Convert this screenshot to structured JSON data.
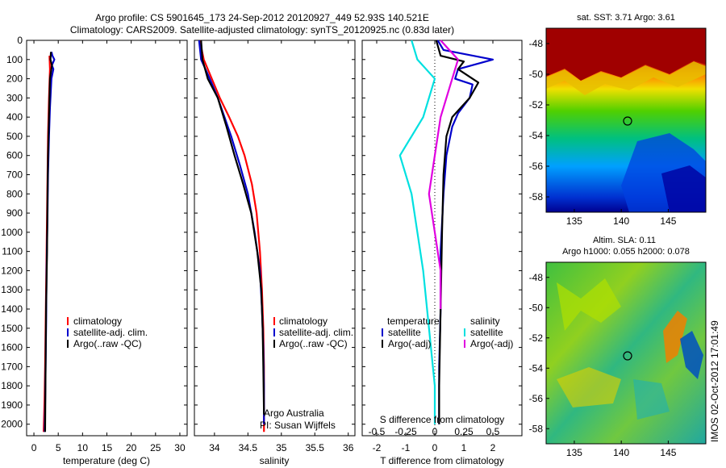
{
  "header": {
    "line1": "Argo profile: CS 5901645_173 24-Sep-2012 20120927_449 52.93S 140.521E",
    "line2": "Climatology: CARS2009. Satellite-adjusted climatology: synTS_20120925.nc (0.83d later)"
  },
  "colors": {
    "climatology": "#ff0000",
    "satellite": "#0000cc",
    "argo": "#000000",
    "sal_satellite": "#00e0e0",
    "sal_argo": "#e000e0"
  },
  "chart_data": [
    {
      "type": "line",
      "xlabel": "temperature (deg C)",
      "ylabel": "",
      "xlim": [
        -1.5,
        31.5
      ],
      "ylim": [
        2060,
        0
      ],
      "xticks": [
        0,
        5,
        10,
        15,
        20,
        25,
        30
      ],
      "yticks": [
        0,
        100,
        200,
        300,
        400,
        500,
        600,
        700,
        800,
        900,
        1000,
        1100,
        1200,
        1300,
        1400,
        1500,
        1600,
        1700,
        1800,
        1900,
        2000
      ],
      "legend": [
        "climatology",
        "satellite-adj. clim.",
        "Argo(..raw -QC)"
      ],
      "series": [
        {
          "name": "climatology",
          "color": "#ff0000",
          "x": [
            3.2,
            3.3,
            3.1,
            2.9,
            2.8,
            2.7,
            2.6,
            2.5,
            2.4,
            2.3,
            2.2,
            2.1,
            2.0
          ],
          "y": [
            80,
            150,
            300,
            500,
            700,
            900,
            1100,
            1300,
            1500,
            1700,
            1850,
            1950,
            2040
          ]
        },
        {
          "name": "satellite-adj. clim.",
          "color": "#0000cc",
          "x": [
            3.6,
            3.8,
            4.2,
            3.7,
            4.0,
            3.6,
            3.3,
            3.1,
            2.9,
            2.8,
            2.6,
            2.5,
            2.4,
            2.3,
            2.2
          ],
          "y": [
            60,
            80,
            100,
            130,
            150,
            200,
            350,
            500,
            700,
            900,
            1200,
            1500,
            1700,
            1900,
            2040
          ]
        },
        {
          "name": "Argo(..raw -QC)",
          "color": "#000000",
          "x": [
            3.5,
            3.4,
            3.7,
            3.3,
            3.1,
            2.9,
            2.8,
            2.7,
            2.5,
            2.4,
            2.3
          ],
          "y": [
            60,
            100,
            130,
            200,
            400,
            600,
            800,
            1100,
            1400,
            1700,
            2040
          ]
        }
      ]
    },
    {
      "type": "line",
      "xlabel": "salinity",
      "xlim": [
        33.7,
        36.1
      ],
      "ylim": [
        2060,
        0
      ],
      "xticks": [
        34,
        34.5,
        35,
        35.5,
        36
      ],
      "xticklabels": [
        "34",
        "34.5",
        "35",
        "35.5",
        "36"
      ],
      "legend": [
        "climatology",
        "satellite-adj. clim.",
        "Argo(..raw -QC)"
      ],
      "annotation": [
        "Argo Australia",
        "PI: Susan Wijffels"
      ],
      "series": [
        {
          "name": "climatology",
          "color": "#ff0000",
          "x": [
            33.78,
            33.84,
            33.96,
            34.08,
            34.22,
            34.35,
            34.45,
            34.56,
            34.63,
            34.68,
            34.71,
            34.73,
            34.74,
            34.74,
            34.74
          ],
          "y": [
            0,
            100,
            200,
            300,
            400,
            500,
            600,
            750,
            900,
            1100,
            1300,
            1500,
            1700,
            1900,
            2040
          ]
        },
        {
          "name": "satellite-adj. clim.",
          "color": "#0000cc",
          "x": [
            33.77,
            33.8,
            33.93,
            34.05,
            34.15,
            34.25,
            34.38,
            34.5,
            34.6,
            34.68,
            34.71,
            34.73,
            34.74,
            34.74
          ],
          "y": [
            0,
            100,
            200,
            300,
            400,
            500,
            650,
            800,
            1000,
            1200,
            1400,
            1600,
            1800,
            2000
          ]
        },
        {
          "name": "Argo(..raw -QC)",
          "color": "#000000",
          "x": [
            33.8,
            33.82,
            33.9,
            34.05,
            34.18,
            34.3,
            34.43,
            34.55,
            34.64,
            34.7,
            34.72,
            34.73,
            34.74
          ],
          "y": [
            0,
            100,
            200,
            300,
            450,
            600,
            750,
            900,
            1100,
            1300,
            1500,
            1700,
            1950
          ]
        }
      ]
    },
    {
      "type": "line",
      "xlabel": "T difference from climatology",
      "xlabel_top": "S difference from climatology",
      "xlim": [
        -2.5,
        3.0
      ],
      "ylim": [
        2060,
        0
      ],
      "xticks": [
        -2,
        -1,
        0,
        1,
        2
      ],
      "s_ticks": [
        -0.5,
        -0.25,
        0,
        0.25,
        0.5
      ],
      "s_ticklabels": [
        "-0.5",
        "-0.25",
        "0",
        "0.25",
        "0.5"
      ],
      "legend_headers": [
        "temperature",
        "salinity"
      ],
      "legend_left": [
        "satellite",
        "Argo(-adj)"
      ],
      "legend_right": [
        "satellite",
        "Argo(-adj)"
      ],
      "series": [
        {
          "name": "T satellite",
          "color": "#0000cc",
          "x": [
            0.1,
            0.3,
            2.0,
            0.8,
            0.7,
            1.3,
            1.2,
            0.8,
            0.6,
            0.4,
            0.3,
            0.2,
            0.2,
            0.15,
            0.15
          ],
          "y": [
            0,
            50,
            100,
            150,
            200,
            230,
            300,
            380,
            450,
            600,
            800,
            1100,
            1400,
            1700,
            2000
          ]
        },
        {
          "name": "T Argo(-adj)",
          "color": "#000000",
          "x": [
            0.05,
            0.2,
            1.0,
            0.8,
            1.5,
            1.2,
            0.9,
            0.6,
            0.4,
            0.3,
            0.25,
            0.2,
            0.15,
            0.15
          ],
          "y": [
            0,
            80,
            110,
            150,
            220,
            300,
            350,
            400,
            500,
            700,
            1000,
            1400,
            1800,
            2000
          ]
        },
        {
          "name": "S satellite",
          "color": "#00e0e0",
          "x": [
            -0.2,
            -0.15,
            0.0,
            -0.1,
            -0.3,
            -0.2,
            -0.15,
            -0.1,
            -0.05,
            0.0,
            0.0
          ],
          "y": [
            0,
            100,
            200,
            400,
            600,
            800,
            1000,
            1200,
            1500,
            1800,
            2000
          ]
        },
        {
          "name": "S Argo(-adj)",
          "color": "#e000e0",
          "x": [
            0.05,
            0.2,
            0.15,
            0.05,
            0.0,
            -0.05,
            0.0,
            0.05,
            0.05
          ],
          "y": [
            0,
            100,
            200,
            400,
            600,
            800,
            1000,
            1200,
            1400
          ]
        }
      ]
    },
    {
      "type": "heatmap",
      "title": "sat. SST: 3.71  Argo: 3.61",
      "xlim": [
        132,
        149
      ],
      "ylim": [
        -59,
        -47
      ],
      "xticks": [
        135,
        140,
        145
      ],
      "yticks": [
        -48,
        -50,
        -52,
        -54,
        -56,
        -58
      ],
      "marker": {
        "x": 140.5,
        "y": -52.93
      }
    },
    {
      "type": "heatmap",
      "title_lines": [
        "Altim. SLA: 0.11",
        "Argo h1000: 0.055 h2000: 0.078"
      ],
      "xlim": [
        132,
        149
      ],
      "ylim": [
        -59,
        -47
      ],
      "xticks": [
        135,
        140,
        145
      ],
      "yticks": [
        -48,
        -50,
        -52,
        -54,
        -56,
        -58
      ],
      "marker": {
        "x": 140.5,
        "y": -52.93
      }
    }
  ],
  "side_stamp": "IMOS 02-Oct-2012 17:01:49"
}
